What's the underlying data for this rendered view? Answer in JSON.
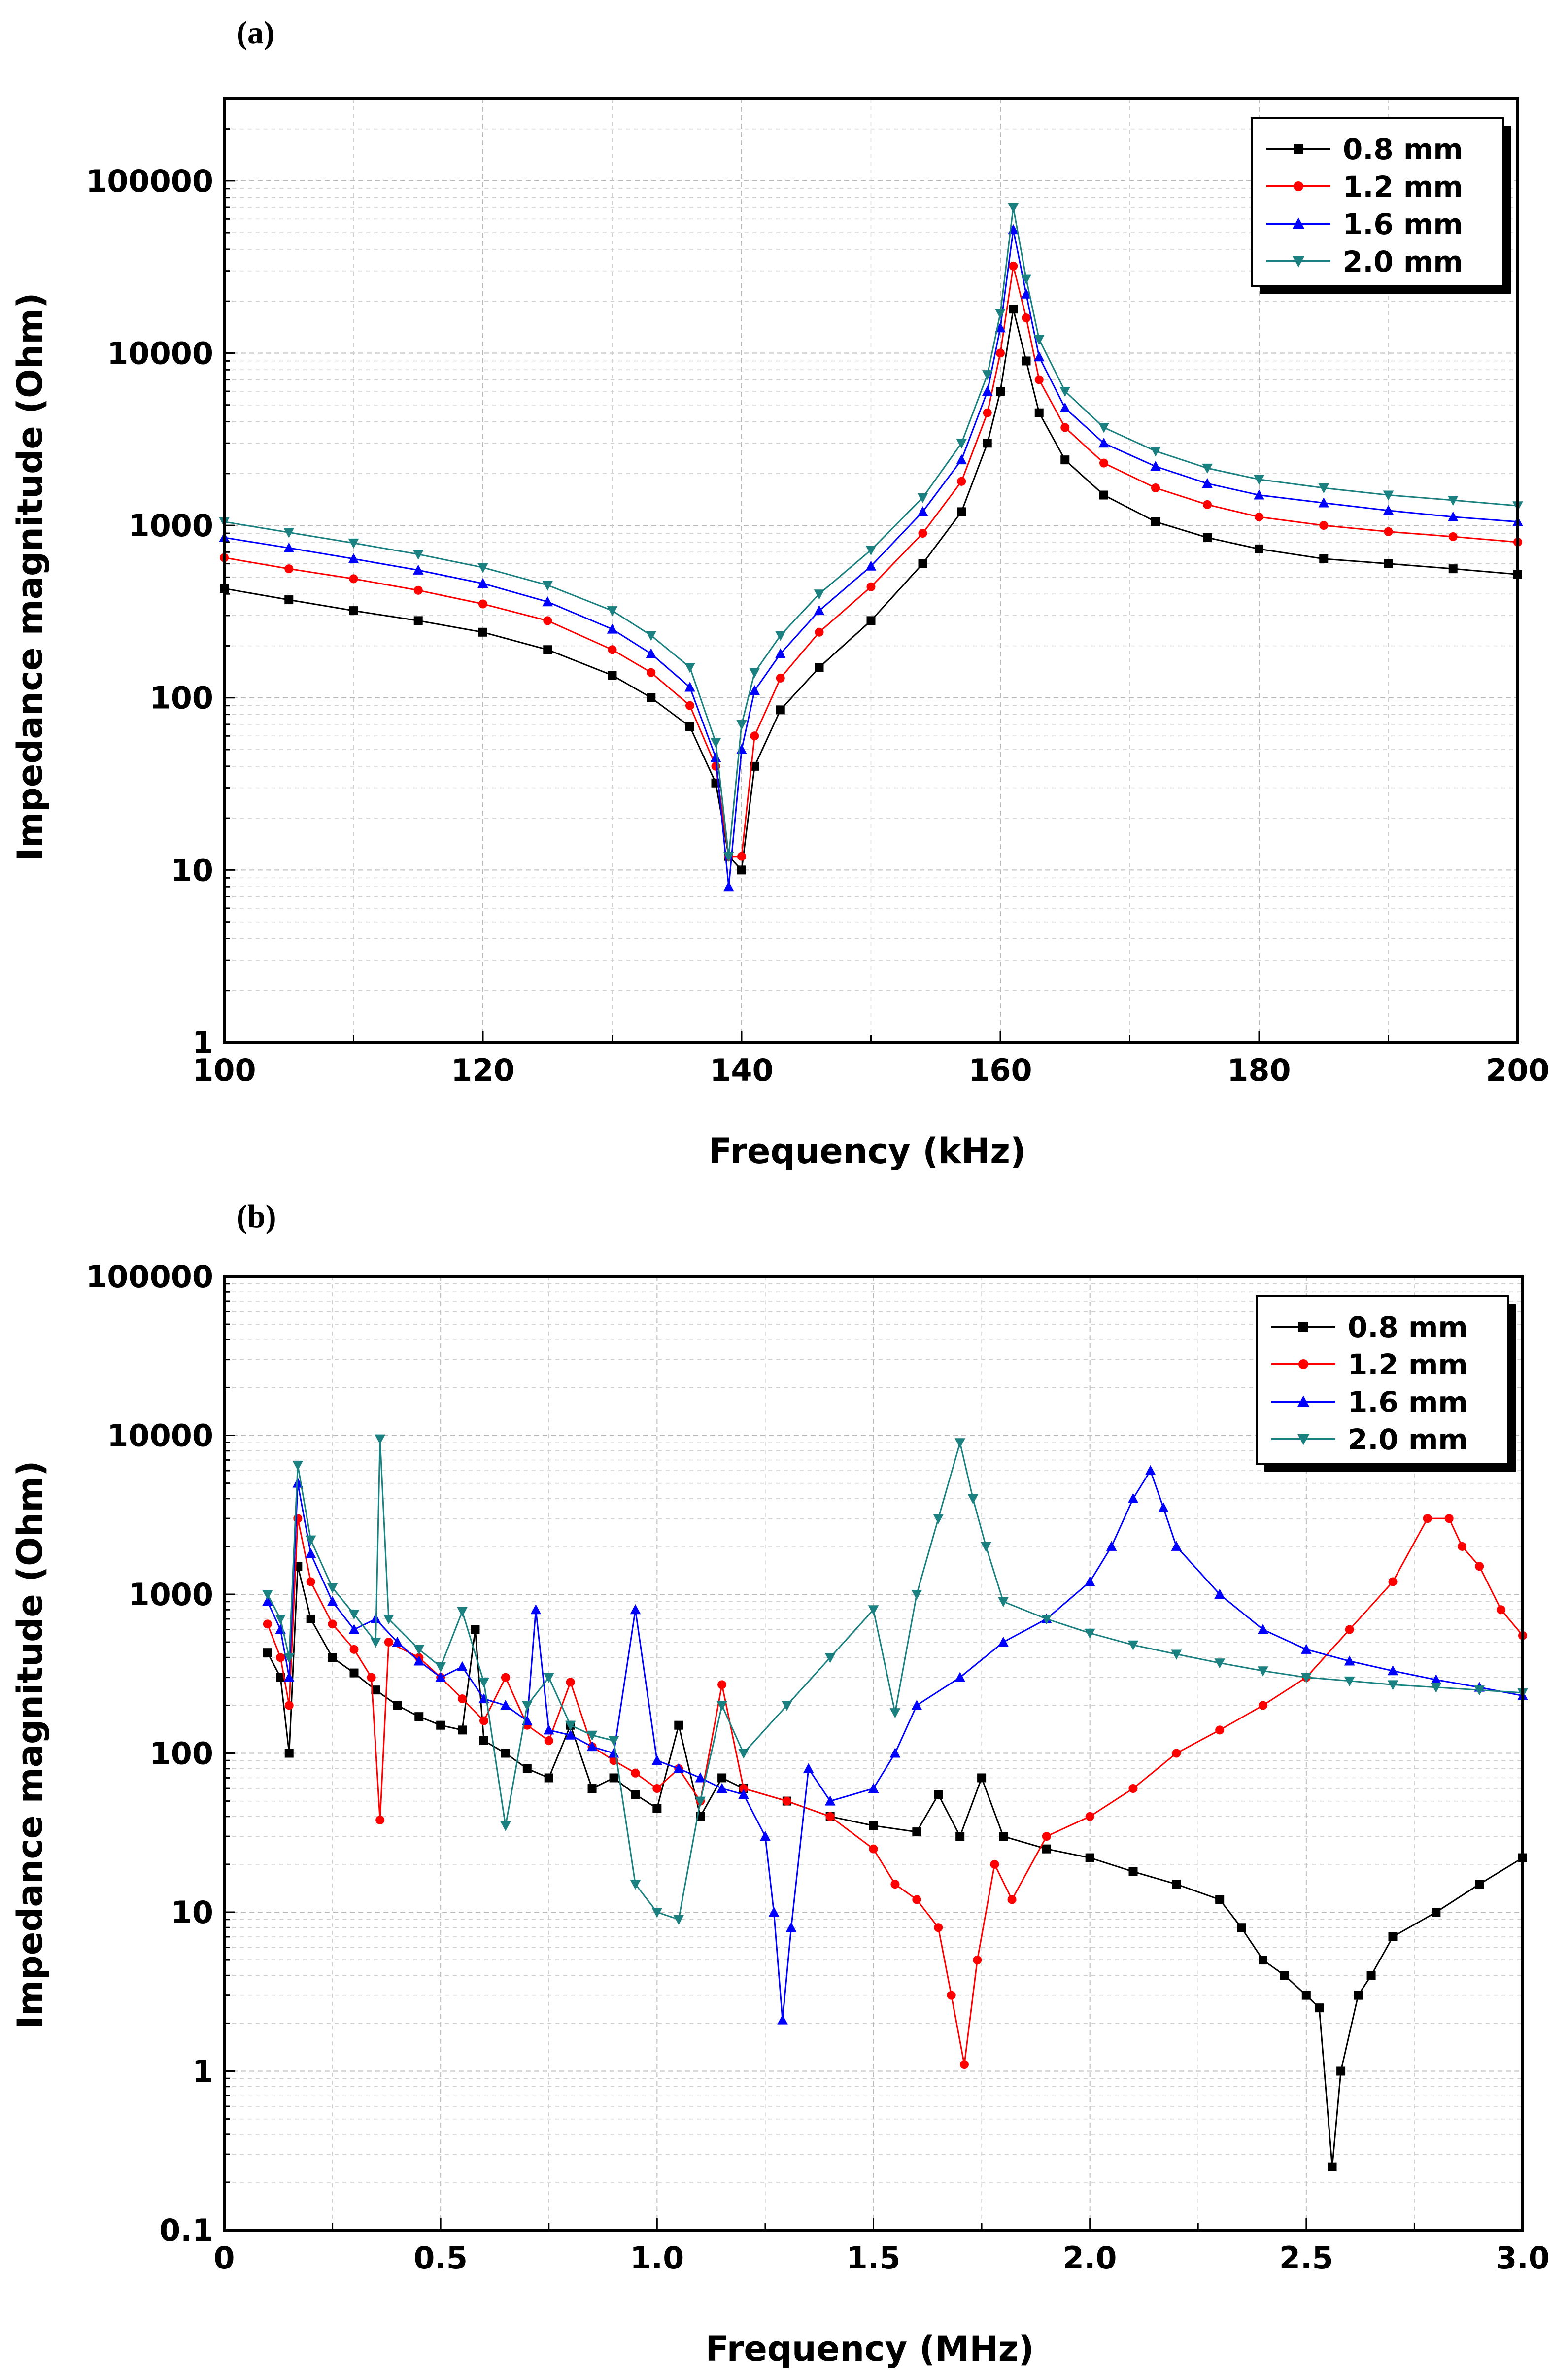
{
  "chart_data": [
    {
      "type": "line",
      "panel_label": "(a)",
      "xlabel": "Frequency (kHz)",
      "ylabel": "Impedance magnitude (Ohm)",
      "xlim": [
        100,
        200
      ],
      "ylim": [
        1,
        300000
      ],
      "yscale": "log",
      "grid": true,
      "legend_position": "top-right",
      "x_ticks": [
        "100",
        "120",
        "140",
        "160",
        "180",
        "200"
      ],
      "y_ticks": [
        "1",
        "10",
        "100",
        "1000",
        "10000",
        "100000"
      ],
      "series": [
        {
          "name": "0.8 mm",
          "color": "#000000",
          "marker": "square",
          "x": [
            100,
            105,
            110,
            115,
            120,
            125,
            130,
            133,
            136,
            138,
            139,
            140,
            141,
            143,
            146,
            150,
            154,
            157,
            159,
            160,
            161,
            162,
            163,
            165,
            168,
            172,
            176,
            180,
            185,
            190,
            195,
            200
          ],
          "y": [
            430,
            370,
            320,
            280,
            240,
            190,
            135,
            100,
            68,
            32,
            12,
            10,
            40,
            85,
            150,
            280,
            600,
            1200,
            3000,
            6000,
            18000,
            9000,
            4500,
            2400,
            1500,
            1050,
            850,
            730,
            640,
            600,
            560,
            520
          ]
        },
        {
          "name": "1.2 mm",
          "color": "#ff0000",
          "marker": "circle",
          "x": [
            100,
            105,
            110,
            115,
            120,
            125,
            130,
            133,
            136,
            138,
            139,
            140,
            141,
            143,
            146,
            150,
            154,
            157,
            159,
            160,
            161,
            162,
            163,
            165,
            168,
            172,
            176,
            180,
            185,
            190,
            195,
            200
          ],
          "y": [
            650,
            560,
            490,
            420,
            350,
            280,
            190,
            140,
            90,
            40,
            12,
            12,
            60,
            130,
            240,
            440,
            900,
            1800,
            4500,
            10000,
            32000,
            16000,
            7000,
            3700,
            2300,
            1650,
            1320,
            1120,
            1000,
            920,
            860,
            800
          ]
        },
        {
          "name": "1.6 mm",
          "color": "#0000ff",
          "marker": "triangle-up",
          "x": [
            100,
            105,
            110,
            115,
            120,
            125,
            130,
            133,
            136,
            138,
            139,
            140,
            141,
            143,
            146,
            150,
            154,
            157,
            159,
            160,
            161,
            162,
            163,
            165,
            168,
            172,
            176,
            180,
            185,
            190,
            195,
            200
          ],
          "y": [
            850,
            740,
            640,
            550,
            460,
            360,
            250,
            180,
            115,
            45,
            8,
            50,
            110,
            180,
            320,
            580,
            1200,
            2400,
            6000,
            14000,
            52000,
            22000,
            9500,
            4800,
            3000,
            2200,
            1750,
            1500,
            1350,
            1220,
            1120,
            1050
          ]
        },
        {
          "name": "2.0 mm",
          "color": "#1a8080",
          "marker": "triangle-down",
          "x": [
            100,
            105,
            110,
            115,
            120,
            125,
            130,
            133,
            136,
            138,
            139,
            140,
            141,
            143,
            146,
            150,
            154,
            157,
            159,
            160,
            161,
            162,
            163,
            165,
            168,
            172,
            176,
            180,
            185,
            190,
            195,
            200
          ],
          "y": [
            1050,
            910,
            790,
            680,
            570,
            450,
            320,
            230,
            150,
            55,
            12,
            70,
            140,
            230,
            400,
            720,
            1450,
            3000,
            7500,
            17000,
            70000,
            27000,
            12000,
            6000,
            3700,
            2700,
            2150,
            1850,
            1650,
            1500,
            1400,
            1300
          ]
        }
      ]
    },
    {
      "type": "line",
      "panel_label": "(b)",
      "xlabel": "Frequency (MHz)",
      "ylabel": "Impedance magnitude (Ohm)",
      "xlim": [
        0,
        3.0
      ],
      "ylim": [
        0.1,
        100000
      ],
      "yscale": "log",
      "grid": true,
      "legend_position": "top-right",
      "x_ticks": [
        "0",
        "0.5",
        "1.0",
        "1.5",
        "2.0",
        "2.5",
        "3.0"
      ],
      "y_ticks": [
        "0.1",
        "1",
        "10",
        "100",
        "1000",
        "10000",
        "100000"
      ],
      "series": [
        {
          "name": "0.8 mm",
          "color": "#000000",
          "marker": "square",
          "x": [
            0.1,
            0.13,
            0.15,
            0.17,
            0.2,
            0.25,
            0.3,
            0.35,
            0.4,
            0.45,
            0.5,
            0.55,
            0.58,
            0.6,
            0.65,
            0.7,
            0.75,
            0.8,
            0.85,
            0.9,
            0.95,
            1.0,
            1.05,
            1.1,
            1.15,
            1.2,
            1.3,
            1.4,
            1.5,
            1.6,
            1.65,
            1.7,
            1.75,
            1.8,
            1.9,
            2.0,
            2.1,
            2.2,
            2.3,
            2.35,
            2.4,
            2.45,
            2.5,
            2.53,
            2.56,
            2.58,
            2.62,
            2.65,
            2.7,
            2.8,
            2.9,
            3.0
          ],
          "y": [
            430,
            300,
            100,
            1500,
            700,
            400,
            320,
            250,
            200,
            170,
            150,
            140,
            600,
            120,
            100,
            80,
            70,
            150,
            60,
            70,
            55,
            45,
            150,
            40,
            70,
            60,
            50,
            40,
            35,
            32,
            55,
            30,
            70,
            30,
            25,
            22,
            18,
            15,
            12,
            8,
            5,
            4,
            3,
            2.5,
            0.25,
            1,
            3,
            4,
            7,
            10,
            15,
            22
          ]
        },
        {
          "name": "1.2 mm",
          "color": "#ff0000",
          "marker": "circle",
          "x": [
            0.1,
            0.13,
            0.15,
            0.17,
            0.2,
            0.25,
            0.3,
            0.34,
            0.36,
            0.38,
            0.45,
            0.5,
            0.55,
            0.6,
            0.65,
            0.7,
            0.75,
            0.8,
            0.85,
            0.9,
            0.95,
            1.0,
            1.05,
            1.1,
            1.15,
            1.2,
            1.3,
            1.4,
            1.5,
            1.55,
            1.6,
            1.65,
            1.68,
            1.71,
            1.74,
            1.78,
            1.82,
            1.9,
            2.0,
            2.1,
            2.2,
            2.3,
            2.4,
            2.5,
            2.6,
            2.7,
            2.78,
            2.83,
            2.86,
            2.9,
            2.95,
            3.0
          ],
          "y": [
            650,
            400,
            200,
            3000,
            1200,
            650,
            450,
            300,
            38,
            500,
            400,
            300,
            220,
            160,
            300,
            150,
            120,
            280,
            110,
            90,
            75,
            60,
            80,
            50,
            270,
            60,
            50,
            40,
            25,
            15,
            12,
            8,
            3,
            1.1,
            5,
            20,
            12,
            30,
            40,
            60,
            100,
            140,
            200,
            300,
            600,
            1200,
            3000,
            3000,
            2000,
            1500,
            800,
            550
          ]
        },
        {
          "name": "1.6 mm",
          "color": "#0000ff",
          "marker": "triangle-up",
          "x": [
            0.1,
            0.13,
            0.15,
            0.17,
            0.2,
            0.25,
            0.3,
            0.35,
            0.4,
            0.45,
            0.5,
            0.55,
            0.6,
            0.65,
            0.7,
            0.72,
            0.75,
            0.8,
            0.85,
            0.9,
            0.95,
            1.0,
            1.05,
            1.1,
            1.15,
            1.2,
            1.25,
            1.27,
            1.29,
            1.31,
            1.35,
            1.4,
            1.5,
            1.55,
            1.6,
            1.7,
            1.8,
            1.9,
            2.0,
            2.05,
            2.1,
            2.14,
            2.17,
            2.2,
            2.3,
            2.4,
            2.5,
            2.6,
            2.7,
            2.8,
            2.9,
            3.0
          ],
          "y": [
            900,
            600,
            300,
            5000,
            1800,
            900,
            600,
            700,
            500,
            380,
            300,
            350,
            220,
            200,
            160,
            800,
            140,
            130,
            110,
            100,
            800,
            90,
            80,
            70,
            60,
            55,
            30,
            10,
            2.1,
            8,
            80,
            50,
            60,
            100,
            200,
            300,
            500,
            700,
            1200,
            2000,
            4000,
            6000,
            3500,
            2000,
            1000,
            600,
            450,
            380,
            330,
            290,
            260,
            230
          ]
        },
        {
          "name": "2.0 mm",
          "color": "#1a8080",
          "marker": "triangle-down",
          "x": [
            0.1,
            0.13,
            0.15,
            0.17,
            0.2,
            0.25,
            0.3,
            0.35,
            0.36,
            0.38,
            0.45,
            0.5,
            0.55,
            0.6,
            0.65,
            0.7,
            0.75,
            0.8,
            0.85,
            0.9,
            0.95,
            1.0,
            1.05,
            1.1,
            1.15,
            1.2,
            1.3,
            1.4,
            1.5,
            1.55,
            1.6,
            1.65,
            1.7,
            1.73,
            1.76,
            1.8,
            1.9,
            2.0,
            2.1,
            2.2,
            2.3,
            2.4,
            2.5,
            2.6,
            2.7,
            2.8,
            2.9,
            3.0
          ],
          "y": [
            1000,
            700,
            400,
            6500,
            2200,
            1100,
            750,
            500,
            9500,
            700,
            450,
            350,
            780,
            280,
            35,
            200,
            300,
            150,
            130,
            120,
            15,
            10,
            9,
            50,
            200,
            100,
            200,
            400,
            800,
            180,
            1000,
            3000,
            9000,
            4000,
            2000,
            900,
            700,
            570,
            480,
            420,
            370,
            330,
            300,
            285,
            270,
            260,
            250,
            240
          ]
        }
      ]
    }
  ]
}
